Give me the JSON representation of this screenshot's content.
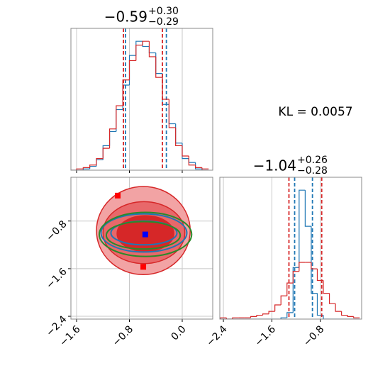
{
  "chart_data": [
    {
      "type": "histogram",
      "title": {
        "value": "−0.59",
        "upper": "+0.30",
        "lower": "−0.29"
      },
      "bins": [
        -1.7,
        -1.6,
        -1.5,
        -1.4,
        -1.3,
        -1.2,
        -1.1,
        -1.0,
        -0.9,
        -0.8,
        -0.7,
        -0.6,
        -0.5,
        -0.4,
        -0.3,
        -0.2,
        -0.1,
        0.0,
        0.1,
        0.2,
        0.3,
        0.4
      ],
      "series": [
        {
          "color": "#1f77b4",
          "values": [
            0,
            0,
            1,
            3,
            8,
            19,
            30,
            47,
            66,
            89,
            100,
            96,
            91,
            75,
            51,
            36,
            21,
            9,
            6,
            1,
            0
          ],
          "quantiles": [
            -0.86,
            -0.24
          ]
        },
        {
          "color": "#d62728",
          "values": [
            0,
            1,
            2,
            4,
            9,
            17,
            32,
            50,
            70,
            85,
            97,
            100,
            88,
            72,
            55,
            33,
            19,
            11,
            4,
            2,
            1
          ],
          "quantiles": [
            -0.89,
            -0.3
          ]
        }
      ],
      "xlim": [
        -1.686,
        0.462
      ],
      "xticks": [
        -1.6,
        -0.8,
        0
      ],
      "ylim": [
        0,
        110
      ],
      "grid": true
    },
    {
      "type": "contour",
      "xlim": [
        -1.686,
        0.462
      ],
      "ylim": [
        -2.447,
        -0.065
      ],
      "xticks": [
        {
          "value": -1.6,
          "label": "−1.6"
        },
        {
          "value": -0.8,
          "label": "−0.8"
        },
        {
          "value": 0,
          "label": "0.0"
        }
      ],
      "yticks": [
        {
          "value": -0.8,
          "label": "−0.8"
        },
        {
          "value": -1.6,
          "label": "−1.6"
        },
        {
          "value": -2.4,
          "label": "−2.4"
        }
      ],
      "grid": true,
      "contours": [
        {
          "color": "#d62728",
          "fill": "#f2a3a4",
          "x": -0.589,
          "y": -0.96,
          "rx": 0.71,
          "ry": 0.74
        },
        {
          "color": "#d62728",
          "fill": "#e8686a",
          "x": -0.58,
          "y": -0.995,
          "rx": 0.62,
          "ry": 0.52
        },
        {
          "color": "#d62728",
          "fill": "#d62728",
          "x": -0.557,
          "y": -1.01,
          "rx": 0.43,
          "ry": 0.3
        },
        {
          "color": "#1f77b4",
          "fill": "none",
          "x": -0.58,
          "y": -1.0,
          "rx": 0.65,
          "ry": 0.32
        },
        {
          "color": "#1f77b4",
          "fill": "none",
          "x": -0.58,
          "y": -1.0,
          "rx": 0.5,
          "ry": 0.2
        },
        {
          "color": "#2a8a2a",
          "fill": "none",
          "x": -0.557,
          "y": -1.025,
          "rx": 0.7,
          "ry": 0.37
        },
        {
          "color": "#2a8a2a",
          "fill": "none",
          "x": -0.59,
          "y": -1.04,
          "rx": 0.56,
          "ry": 0.23
        }
      ],
      "markers": [
        {
          "x": -0.977,
          "y": -0.373,
          "color": "#ff0000"
        },
        {
          "x": -0.59,
          "y": -1.57,
          "color": "#ff0000"
        },
        {
          "x": -0.56,
          "y": -1.025,
          "color": "#0000ff"
        }
      ]
    },
    {
      "type": "histogram",
      "title": {
        "value": "−1.04",
        "upper": "+0.26",
        "lower": "−0.28"
      },
      "bins": [
        -2.45,
        -2.35,
        -2.25,
        -2.15,
        -2.05,
        -1.95,
        -1.85,
        -1.75,
        -1.65,
        -1.55,
        -1.45,
        -1.35,
        -1.25,
        -1.15,
        -1.05,
        -0.95,
        -0.85,
        -0.75,
        -0.65,
        -0.55,
        -0.45,
        -0.35,
        -0.25,
        -0.15
      ],
      "series": [
        {
          "color": "#1f77b4",
          "values": [
            0,
            0,
            0,
            0,
            0,
            0,
            0,
            0,
            0,
            0,
            1,
            5,
            40,
            100,
            72,
            20,
            3,
            0,
            0,
            0,
            0,
            0,
            0
          ],
          "quantiles": [
            -1.224,
            -0.93
          ]
        },
        {
          "color": "#d62728",
          "values": [
            1,
            0,
            1,
            1,
            1,
            2,
            3,
            4,
            6,
            11,
            18,
            28,
            37,
            44,
            44,
            39,
            30,
            20,
            12,
            6,
            3,
            2,
            1
          ],
          "quantiles": [
            -1.318,
            -0.777
          ]
        }
      ],
      "xlim": [
        -2.459,
        -0.118
      ],
      "xticks": [
        {
          "value": -2.4,
          "label": "−2.4"
        },
        {
          "value": -1.6,
          "label": "−1.6"
        },
        {
          "value": -0.8,
          "label": "−0.8"
        }
      ],
      "ylim": [
        0,
        110
      ],
      "grid": true
    }
  ],
  "annotation": "KL = 0.0057"
}
